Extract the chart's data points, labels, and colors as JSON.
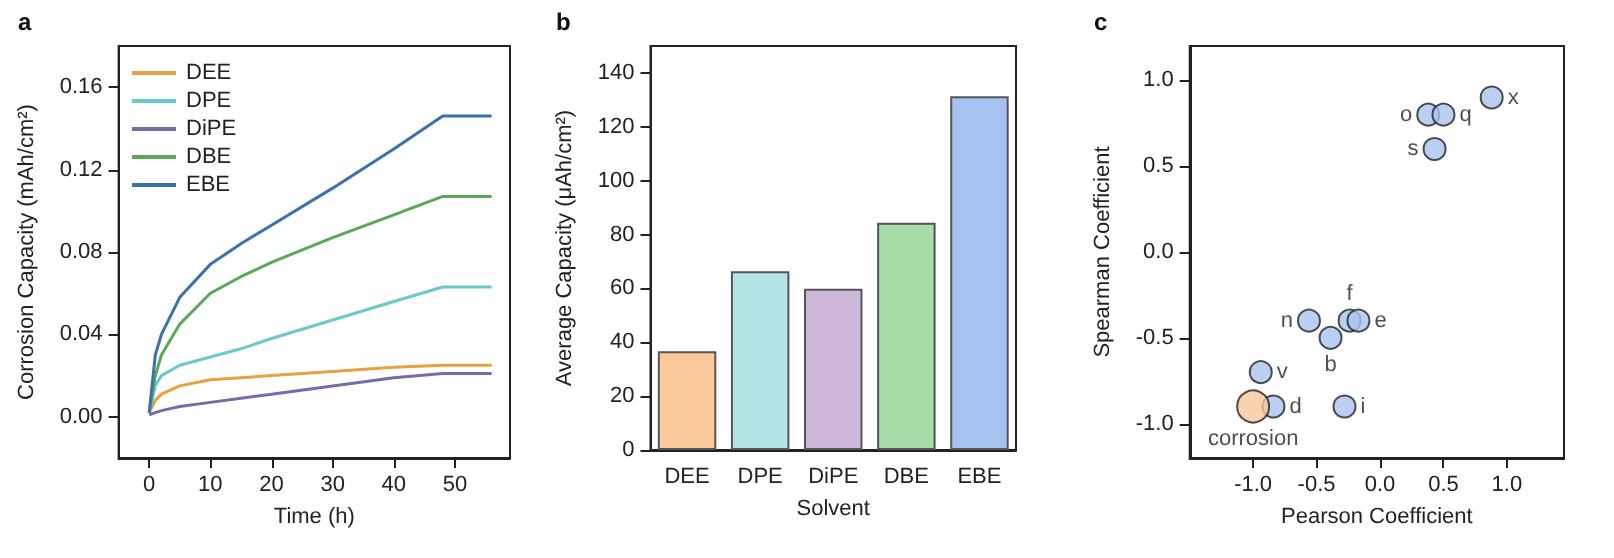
{
  "chart_data": [
    {
      "type": "line",
      "title": "a",
      "xlabel": "Time (h)",
      "ylabel": "Corrosion Capacity (mAh/cm²)",
      "xlim": [
        -5,
        59
      ],
      "ylim": [
        -0.02,
        0.18
      ],
      "xticks": [
        0,
        10,
        20,
        30,
        40,
        50
      ],
      "yticks": [
        {
          "value": 0,
          "label": "0.00"
        },
        0.04,
        0.08,
        0.12,
        0.16
      ],
      "legend": "top left",
      "marker": "none",
      "line_style": "solid",
      "x": [
        0,
        1,
        2,
        5,
        10,
        15,
        20,
        30,
        40,
        48,
        56
      ],
      "series": [
        {
          "name": "DEE",
          "color": "#e8a040",
          "values": [
            0.002,
            0.008,
            0.011,
            0.015,
            0.018,
            0.019,
            0.02,
            0.022,
            0.024,
            0.025,
            0.025
          ]
        },
        {
          "name": "DPE",
          "color": "#6cc8cc",
          "values": [
            0.002,
            0.015,
            0.02,
            0.025,
            0.029,
            0.033,
            0.038,
            0.047,
            0.056,
            0.063,
            0.063
          ]
        },
        {
          "name": "DiPE",
          "color": "#7a6aaa",
          "values": [
            0.001,
            0.002,
            0.003,
            0.005,
            0.007,
            0.009,
            0.011,
            0.015,
            0.019,
            0.021,
            0.021
          ]
        },
        {
          "name": "DBE",
          "color": "#5aa85a",
          "values": [
            0.002,
            0.02,
            0.03,
            0.045,
            0.06,
            0.068,
            0.075,
            0.087,
            0.098,
            0.107,
            0.107
          ]
        },
        {
          "name": "EBE",
          "color": "#3a72b0",
          "values": [
            0.002,
            0.03,
            0.04,
            0.058,
            0.074,
            0.084,
            0.093,
            0.111,
            0.13,
            0.146,
            0.146
          ]
        }
      ]
    },
    {
      "type": "bar",
      "title": "b",
      "xlabel": "Solvent",
      "ylabel": "Average Capacity (μAh/cm²)",
      "ylim": [
        0,
        150
      ],
      "yticks": [
        0,
        20,
        40,
        60,
        80,
        100,
        120,
        140
      ],
      "categories": [
        "DEE",
        "DPE",
        "DiPE",
        "DBE",
        "EBE"
      ],
      "values": [
        36.7,
        66.4,
        59.9,
        84.4,
        131.3
      ],
      "colors": [
        "#f9c89b",
        "#b5e4e8",
        "#cdb8dc",
        "#a8dca8",
        "#a6c2f0"
      ]
    },
    {
      "type": "scatter",
      "title": "c",
      "xlabel": "Pearson Coefficient",
      "ylabel": "Spearman Coefficient",
      "xlim": [
        -1.5,
        1.45
      ],
      "ylim": [
        -1.2,
        1.2
      ],
      "xticks": [
        {
          "value": -1,
          "label": "-1.0"
        },
        -0.5,
        {
          "value": 0,
          "label": "0.0"
        },
        0.5,
        {
          "value": 1,
          "label": "1.0"
        }
      ],
      "yticks": [
        {
          "value": -1,
          "label": "-1.0"
        },
        -0.5,
        {
          "value": 0,
          "label": "0.0"
        },
        0.5,
        {
          "value": 1,
          "label": "1.0"
        }
      ],
      "marker": "circle",
      "series": [
        {
          "color": "#a9c4f0",
          "x": [
            0.88,
            0.38,
            0.5,
            0.43,
            -0.24,
            -0.17,
            -0.56,
            -0.39,
            -0.94,
            -0.84,
            -0.28
          ],
          "values": [
            0.9,
            0.8,
            0.8,
            0.6,
            -0.4,
            -0.4,
            -0.4,
            -0.5,
            -0.7,
            -0.9,
            -0.9
          ],
          "value_labels": [
            "x",
            "o",
            "q",
            "s",
            "f",
            "e",
            "n",
            "b",
            "v",
            "d",
            "i"
          ]
        },
        {
          "name": "corrosion",
          "color": "#f8c79a",
          "x": [
            -1.0
          ],
          "values": [
            -0.9
          ]
        }
      ]
    }
  ]
}
